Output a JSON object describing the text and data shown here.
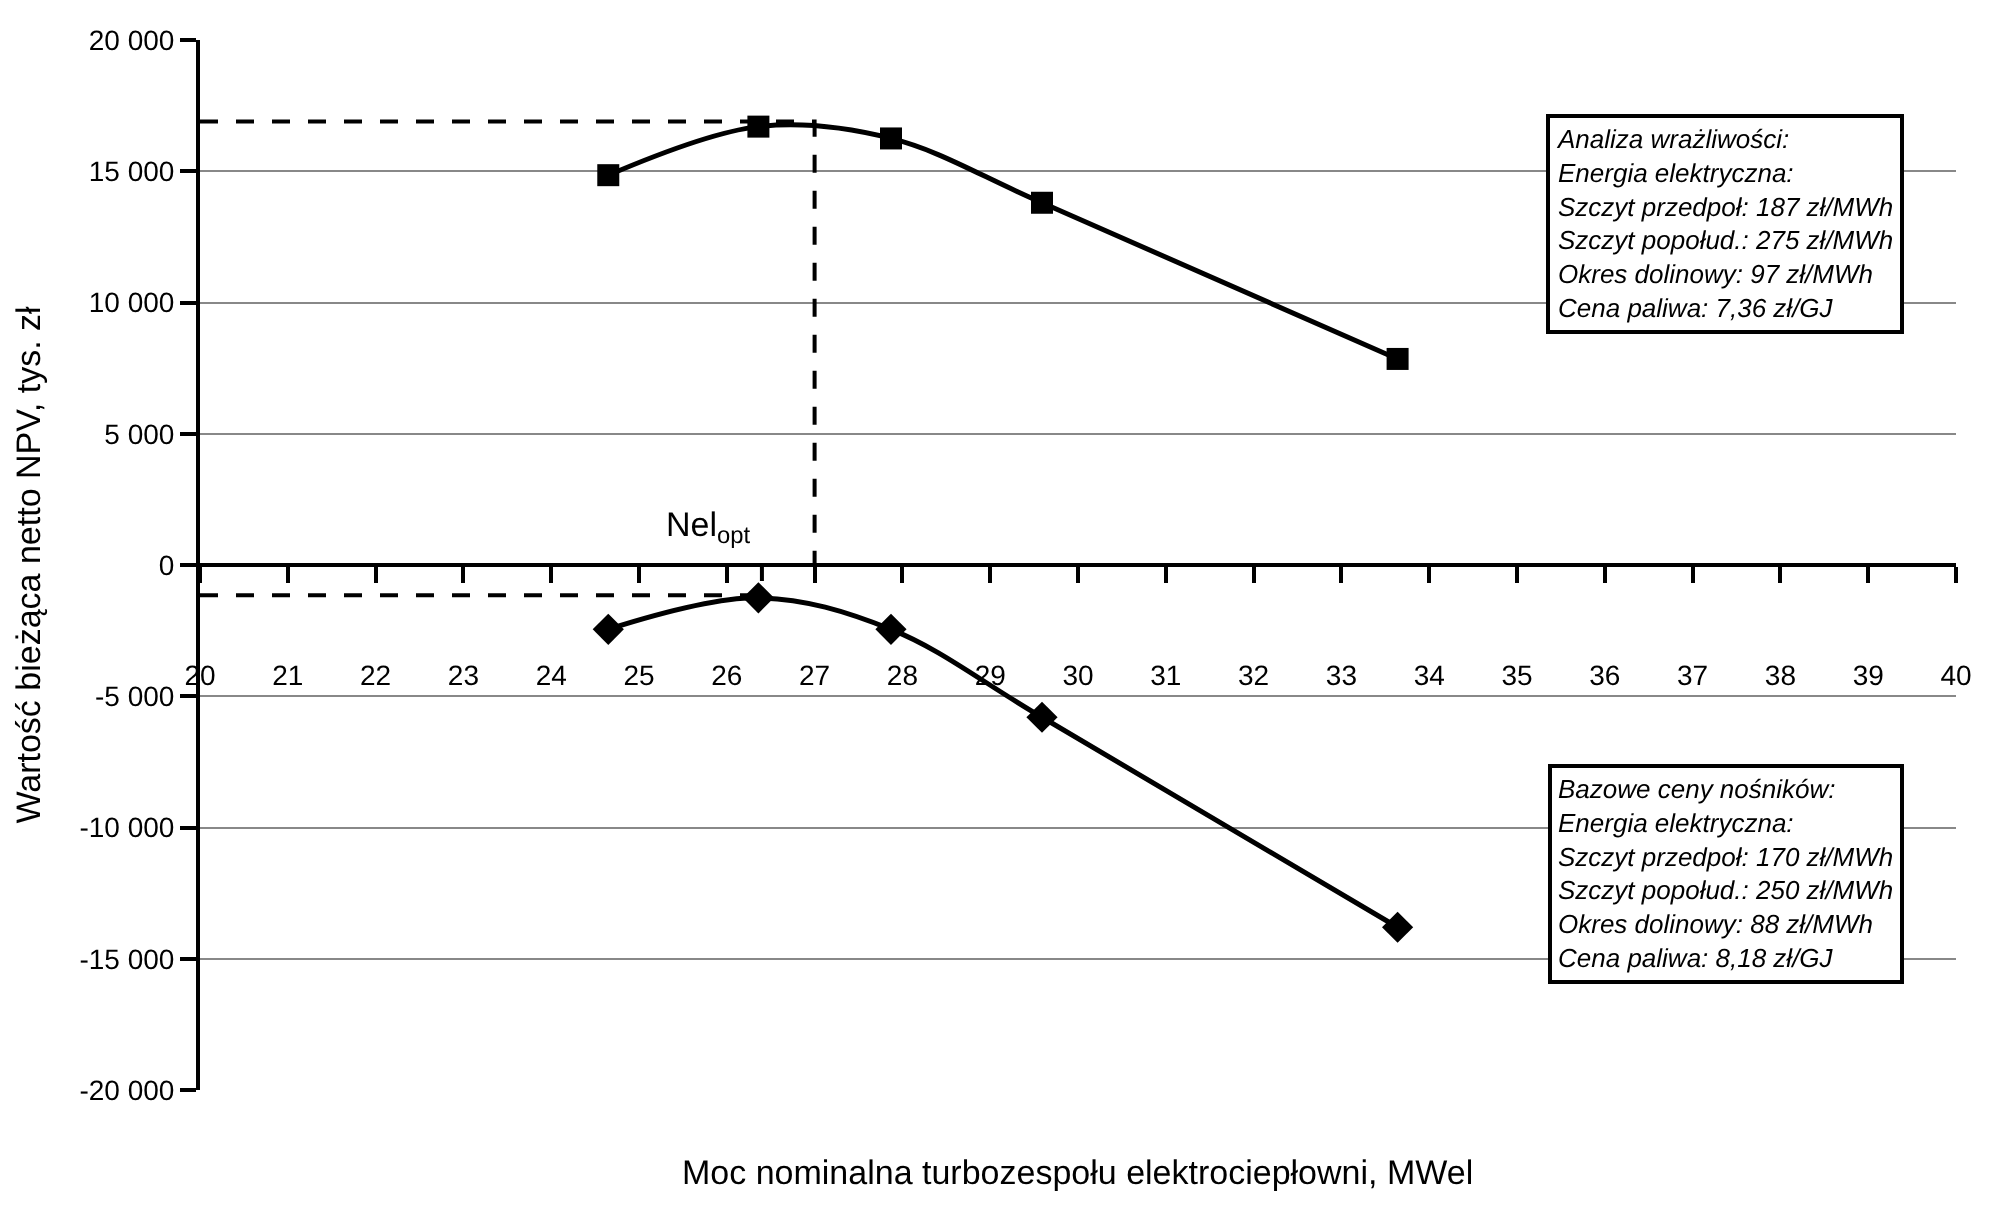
{
  "chart_data": {
    "type": "line",
    "xlabel": "Moc nominalna turbozespołu elektrociepłowni, MWel",
    "ylabel": "Wartość bieżąca netto NPV, tys. zł",
    "xlim": [
      20,
      40
    ],
    "xticks": [
      20,
      21,
      22,
      23,
      24,
      25,
      26,
      27,
      28,
      29,
      30,
      31,
      32,
      33,
      34,
      35,
      36,
      37,
      38,
      39,
      40
    ],
    "ylim": [
      -20000,
      20000
    ],
    "yticks": [
      {
        "value": -20000,
        "label": "-20 000"
      },
      {
        "value": -15000,
        "label": "-15 000"
      },
      {
        "value": -10000,
        "label": "-10 000"
      },
      {
        "value": -5000,
        "label": "-5 000"
      },
      0,
      {
        "value": 5000,
        "label": "5 000"
      },
      {
        "value": 10000,
        "label": "10 000"
      },
      {
        "value": 15000,
        "label": "15 000"
      },
      {
        "value": 20000,
        "label": "20 000"
      }
    ],
    "grid": "y",
    "series": [
      {
        "color": "#000000",
        "marker": "square",
        "line_style": "solid",
        "x": [
          24.65,
          26.36,
          27.87,
          29.59,
          33.64
        ],
        "values": [
          14850,
          16700,
          16250,
          13800,
          7850
        ]
      },
      {
        "color": "#000000",
        "marker": "diamond",
        "line_style": "solid",
        "x": [
          24.65,
          26.36,
          27.87,
          29.59,
          33.64
        ],
        "values": [
          -2450,
          -1250,
          -2450,
          -5800,
          -13800
        ]
      },
      {
        "color": "#000000",
        "marker": "none",
        "line_style": "dashed",
        "x": [
          20,
          27,
          27
        ],
        "values": [
          16900,
          16900,
          0
        ]
      },
      {
        "color": "#000000",
        "marker": "none",
        "line_style": "dashed",
        "x": [
          20,
          26.4,
          26.4
        ],
        "values": [
          -1150,
          -1150,
          0
        ]
      }
    ],
    "annotations": [
      {
        "text": "Nel$_{opt}$",
        "x": 26.4,
        "y": 0
      },
      "Analiza wrażliwości:\nEnergia elektryczna:\nSzczyt przedpoł: 187 zł/MWh\nSzczyt popołud.: 275 zł/MWh\nOkres dolinowy: 97 zł/MWh\nCena paliwa: 7,36 zł/GJ",
      "Bazowe ceny nośników:\nEnergia elektryczna:\nSzczyt przedpoł: 170 zł/MWh\nSzczyt popołud.: 250 zł/MWh\nOkres dolinowy: 88 zł/MWh\nCena paliwa: 8,18 zł/GJ"
    ]
  }
}
